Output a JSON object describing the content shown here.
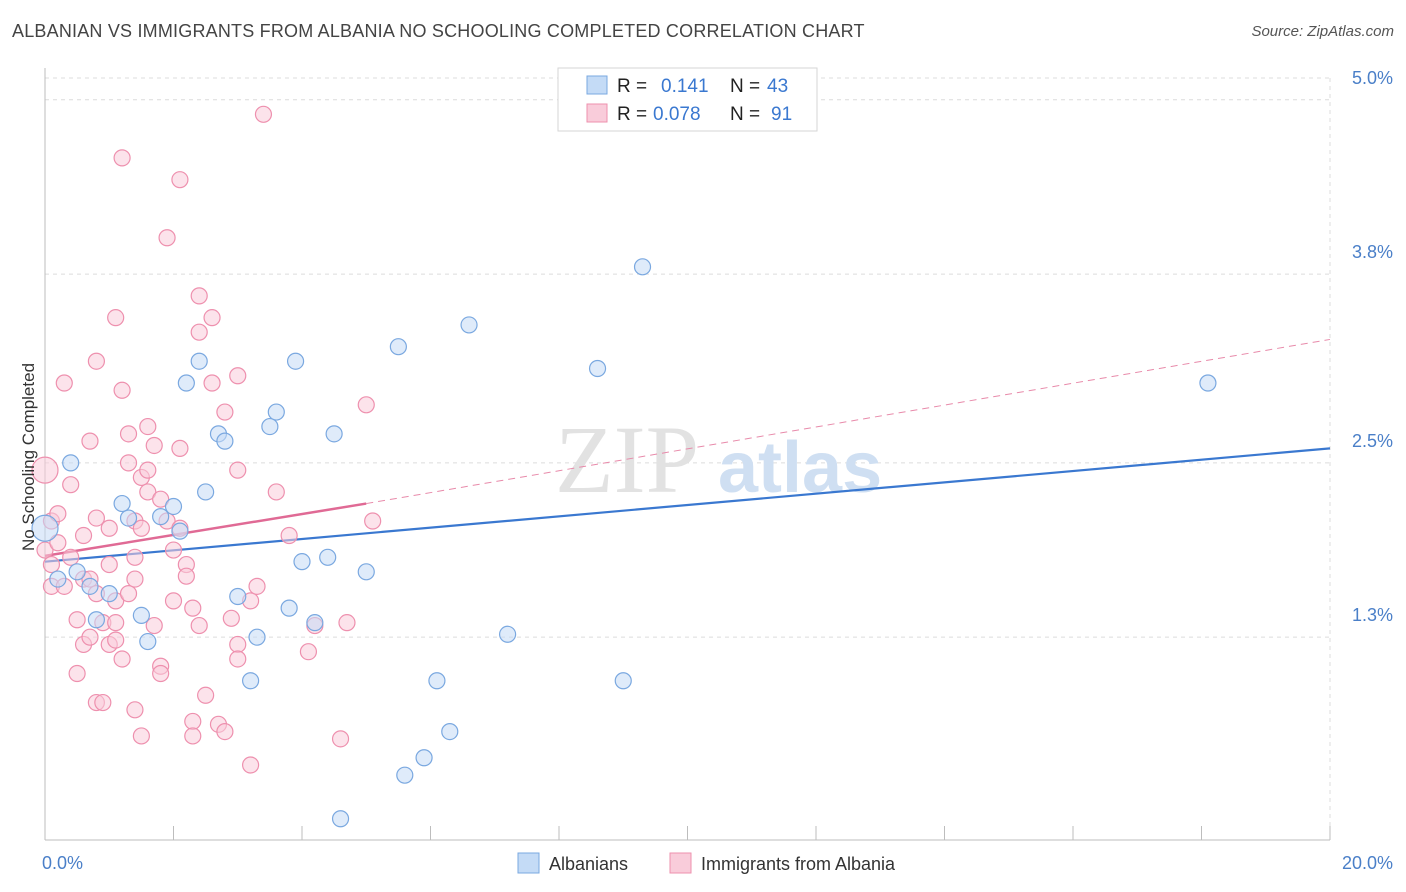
{
  "title": "ALBANIAN VS IMMIGRANTS FROM ALBANIA NO SCHOOLING COMPLETED CORRELATION CHART",
  "source": "Source: ZipAtlas.com",
  "watermark": {
    "zip": "ZIP",
    "atlas": "atlas"
  },
  "legend_box": {
    "rows": [
      {
        "r_label": "R =",
        "r_value": "0.141",
        "n_label": "N =",
        "n_value": "43",
        "color": "#a8c8f0"
      },
      {
        "r_label": "R =",
        "r_value": "0.078",
        "n_label": "N =",
        "n_value": "91",
        "color": "#f6b8cc"
      }
    ]
  },
  "bottom_legend": [
    "Albanians",
    "Immigrants from Albania"
  ],
  "chart_data": {
    "type": "scatter",
    "title": "ALBANIAN VS IMMIGRANTS FROM ALBANIA NO SCHOOLING COMPLETED CORRELATION CHART",
    "xlabel": "",
    "ylabel": "No Schooling Completed",
    "xlim": [
      0,
      20
    ],
    "ylim": [
      0,
      5.15
    ],
    "x_tick_labels": [
      "0.0%",
      "20.0%"
    ],
    "y_ticks": [
      1.3,
      2.5,
      3.8,
      5.0
    ],
    "y_tick_labels": [
      "1.3%",
      "2.5%",
      "3.8%",
      "5.0%"
    ],
    "grid": true,
    "legend_position": "top-center",
    "series": [
      {
        "name": "Albanians",
        "color": "#7aa8e0",
        "fill": "#c4dbf6",
        "trend": {
          "x0": 0,
          "y0": 1.82,
          "x1": 20,
          "y1": 2.6,
          "color": "#3a78d0"
        },
        "points": [
          [
            0.0,
            2.05
          ],
          [
            0.2,
            1.7
          ],
          [
            0.4,
            2.5
          ],
          [
            0.5,
            1.75
          ],
          [
            0.7,
            1.65
          ],
          [
            0.8,
            1.42
          ],
          [
            1.0,
            1.6
          ],
          [
            1.2,
            2.22
          ],
          [
            1.3,
            2.12
          ],
          [
            1.5,
            1.45
          ],
          [
            1.6,
            1.27
          ],
          [
            1.8,
            2.13
          ],
          [
            2.0,
            2.2
          ],
          [
            2.1,
            2.03
          ],
          [
            2.2,
            3.05
          ],
          [
            2.4,
            3.2
          ],
          [
            2.5,
            2.3
          ],
          [
            2.7,
            2.7
          ],
          [
            2.8,
            2.65
          ],
          [
            3.0,
            1.58
          ],
          [
            3.2,
            1.0
          ],
          [
            3.3,
            1.3
          ],
          [
            3.5,
            2.75
          ],
          [
            3.6,
            2.85
          ],
          [
            3.8,
            1.5
          ],
          [
            3.9,
            3.2
          ],
          [
            4.0,
            1.82
          ],
          [
            4.2,
            1.4
          ],
          [
            4.4,
            1.85
          ],
          [
            4.5,
            2.7
          ],
          [
            4.6,
            0.05
          ],
          [
            5.0,
            1.75
          ],
          [
            5.5,
            3.3
          ],
          [
            5.6,
            0.35
          ],
          [
            5.9,
            0.47
          ],
          [
            6.1,
            1.0
          ],
          [
            6.3,
            0.65
          ],
          [
            6.6,
            3.45
          ],
          [
            7.2,
            1.32
          ],
          [
            8.6,
            3.15
          ],
          [
            9.0,
            1.0
          ],
          [
            9.3,
            3.85
          ],
          [
            18.1,
            3.05
          ]
        ]
      },
      {
        "name": "Immigrants from Albania",
        "color": "#ee90ae",
        "fill": "#f9ccda",
        "trend": {
          "x0": 0,
          "y0": 1.86,
          "x1": 5.0,
          "y1": 2.22,
          "color": "#e06a95"
        },
        "trend_ext": {
          "x0": 5.0,
          "y0": 2.22,
          "x1": 20,
          "y1": 3.35,
          "color": "#e88aaa"
        },
        "points": [
          [
            0.0,
            2.45
          ],
          [
            0.0,
            1.9
          ],
          [
            0.1,
            1.8
          ],
          [
            0.1,
            2.1
          ],
          [
            0.1,
            1.65
          ],
          [
            0.2,
            1.95
          ],
          [
            0.2,
            2.15
          ],
          [
            0.3,
            3.05
          ],
          [
            0.3,
            1.65
          ],
          [
            0.4,
            1.85
          ],
          [
            0.4,
            2.35
          ],
          [
            0.5,
            1.42
          ],
          [
            0.5,
            1.05
          ],
          [
            0.6,
            1.25
          ],
          [
            0.6,
            1.7
          ],
          [
            0.6,
            2.0
          ],
          [
            0.7,
            2.65
          ],
          [
            0.7,
            1.3
          ],
          [
            0.7,
            1.7
          ],
          [
            0.8,
            2.12
          ],
          [
            0.8,
            3.2
          ],
          [
            0.8,
            0.85
          ],
          [
            0.8,
            1.6
          ],
          [
            0.9,
            1.4
          ],
          [
            0.9,
            0.85
          ],
          [
            1.0,
            1.25
          ],
          [
            1.0,
            1.8
          ],
          [
            1.0,
            2.05
          ],
          [
            1.1,
            1.55
          ],
          [
            1.1,
            1.4
          ],
          [
            1.1,
            1.28
          ],
          [
            1.1,
            3.5
          ],
          [
            1.2,
            4.6
          ],
          [
            1.2,
            1.15
          ],
          [
            1.2,
            3.0
          ],
          [
            1.3,
            2.7
          ],
          [
            1.3,
            2.5
          ],
          [
            1.3,
            1.6
          ],
          [
            1.4,
            0.8
          ],
          [
            1.4,
            1.7
          ],
          [
            1.4,
            1.85
          ],
          [
            1.4,
            2.1
          ],
          [
            1.5,
            0.62
          ],
          [
            1.5,
            2.4
          ],
          [
            1.5,
            2.05
          ],
          [
            1.6,
            2.45
          ],
          [
            1.6,
            2.75
          ],
          [
            1.6,
            2.3
          ],
          [
            1.7,
            1.38
          ],
          [
            1.7,
            2.62
          ],
          [
            1.8,
            2.25
          ],
          [
            1.8,
            1.1
          ],
          [
            1.8,
            1.05
          ],
          [
            1.9,
            2.1
          ],
          [
            1.9,
            4.05
          ],
          [
            2.0,
            1.9
          ],
          [
            2.0,
            1.55
          ],
          [
            2.1,
            4.45
          ],
          [
            2.1,
            2.6
          ],
          [
            2.1,
            2.05
          ],
          [
            2.2,
            1.8
          ],
          [
            2.2,
            1.72
          ],
          [
            2.3,
            0.72
          ],
          [
            2.3,
            0.62
          ],
          [
            2.3,
            1.5
          ],
          [
            2.4,
            3.65
          ],
          [
            2.4,
            1.38
          ],
          [
            2.4,
            3.4
          ],
          [
            2.5,
            0.9
          ],
          [
            2.6,
            3.05
          ],
          [
            2.6,
            3.5
          ],
          [
            2.7,
            0.7
          ],
          [
            2.8,
            0.65
          ],
          [
            2.8,
            2.85
          ],
          [
            2.9,
            1.43
          ],
          [
            3.0,
            2.45
          ],
          [
            3.0,
            3.1
          ],
          [
            3.0,
            1.25
          ],
          [
            3.0,
            1.15
          ],
          [
            3.2,
            1.55
          ],
          [
            3.2,
            0.42
          ],
          [
            3.3,
            1.65
          ],
          [
            3.4,
            4.9
          ],
          [
            3.6,
            2.3
          ],
          [
            3.8,
            2.0
          ],
          [
            4.1,
            1.2
          ],
          [
            4.2,
            1.38
          ],
          [
            4.6,
            0.6
          ],
          [
            4.7,
            1.4
          ],
          [
            5.0,
            2.9
          ],
          [
            5.1,
            2.1
          ]
        ]
      }
    ]
  }
}
